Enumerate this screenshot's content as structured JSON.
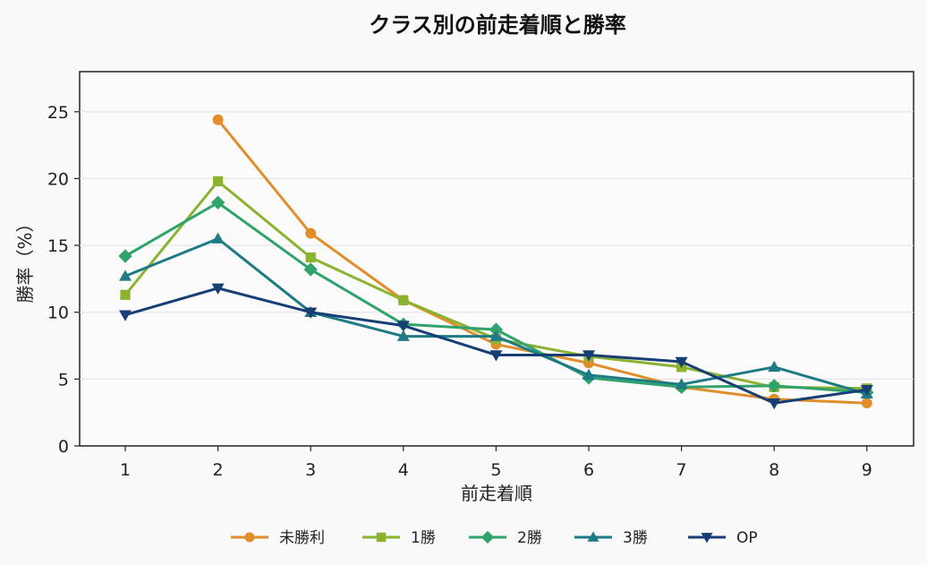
{
  "chart_data": {
    "type": "line",
    "title": "クラス別の前走着順と勝率",
    "xlabel": "前走着順",
    "ylabel": "勝率（%）",
    "x": [
      1,
      2,
      3,
      4,
      5,
      6,
      7,
      8,
      9
    ],
    "ylim": [
      0,
      28
    ],
    "yticks": [
      0,
      5,
      10,
      15,
      20,
      25
    ],
    "grid": "horizontal",
    "legend_position": "bottom-center",
    "series": [
      {
        "name": "未勝利",
        "color": "#e08e2b",
        "marker": "circle",
        "values": [
          null,
          24.4,
          15.9,
          10.9,
          7.6,
          6.2,
          4.4,
          3.5,
          3.2
        ]
      },
      {
        "name": "1勝",
        "color": "#8bb330",
        "marker": "square",
        "values": [
          11.3,
          19.8,
          14.1,
          10.9,
          8.0,
          6.7,
          5.9,
          4.4,
          4.3
        ]
      },
      {
        "name": "2勝",
        "color": "#2fa36b",
        "marker": "diamond",
        "values": [
          14.2,
          18.2,
          13.2,
          9.1,
          8.7,
          5.1,
          4.4,
          4.5,
          4.0
        ]
      },
      {
        "name": "3勝",
        "color": "#1e7b86",
        "marker": "triangle-up",
        "values": [
          12.7,
          15.5,
          10.0,
          8.2,
          8.2,
          5.3,
          4.6,
          5.9,
          3.9
        ]
      },
      {
        "name": "OP",
        "color": "#173f75",
        "marker": "triangle-down",
        "values": [
          9.8,
          11.8,
          10.0,
          9.0,
          6.8,
          6.8,
          6.3,
          3.2,
          4.2
        ]
      }
    ]
  }
}
